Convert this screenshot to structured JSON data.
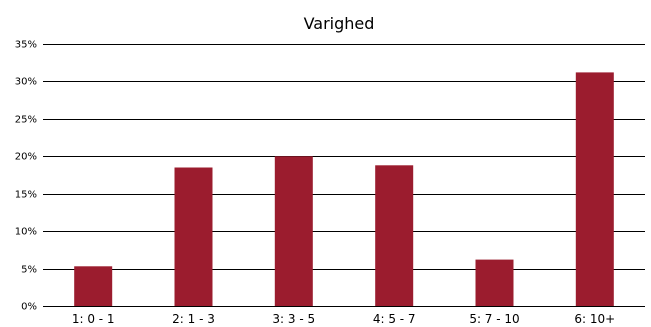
{
  "chart_data": {
    "type": "bar",
    "title": "Varighed",
    "categories": [
      "1:   0 - 1",
      "2:   1 - 3",
      "3:   3 - 5",
      "4:   5 - 7",
      "5:   7 - 10",
      "6:   10+"
    ],
    "values": [
      5.3,
      18.5,
      20.0,
      18.8,
      6.2,
      31.2
    ],
    "ylim": [
      0,
      35
    ],
    "yticks": [
      "0%",
      "5%",
      "10%",
      "15%",
      "20%",
      "25%",
      "30%",
      "35%"
    ],
    "grid": true,
    "bar_color": "#9b1c2e"
  }
}
